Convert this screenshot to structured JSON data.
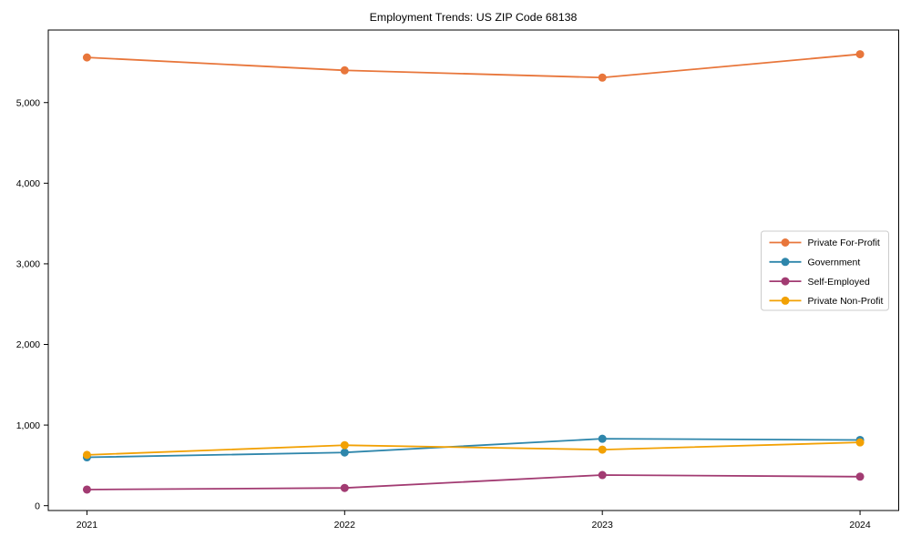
{
  "chart_data": {
    "type": "line",
    "title": "Employment Trends: US ZIP Code 68138",
    "categories": [
      "2021",
      "2022",
      "2023",
      "2024"
    ],
    "series": [
      {
        "name": "Private For-Profit",
        "color": "#E8763B",
        "values": [
          5560,
          5400,
          5310,
          5600
        ]
      },
      {
        "name": "Government",
        "color": "#2E86AB",
        "values": [
          600,
          660,
          830,
          815
        ]
      },
      {
        "name": "Self-Employed",
        "color": "#A23B72",
        "values": [
          200,
          220,
          380,
          360
        ]
      },
      {
        "name": "Private Non-Profit",
        "color": "#F2A104",
        "values": [
          630,
          750,
          695,
          785
        ]
      }
    ],
    "xlabel": "",
    "ylabel": "",
    "yticks": [
      0,
      1000,
      2000,
      3000,
      4000,
      5000
    ],
    "ytick_labels": [
      "0",
      "1,000",
      "2,000",
      "3,000",
      "4,000",
      "5,000"
    ],
    "xlim": [
      2020.85,
      2024.15
    ],
    "ylim": [
      -60,
      5900
    ],
    "grid": false,
    "legend_position": "center right",
    "marker": "circle",
    "colors": {
      "background": "#ffffff",
      "spine": "#000000",
      "text": "#000000",
      "legend_border": "#cccccc",
      "legend_background": "#ffffff"
    }
  }
}
